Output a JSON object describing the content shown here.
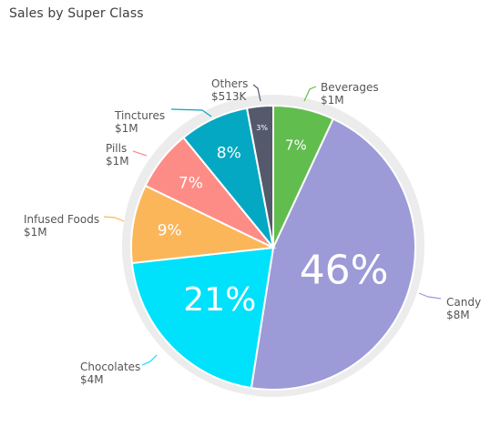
{
  "chart_data": {
    "type": "pie",
    "title": "Sales by Super Class",
    "legend": "data-labels-outside",
    "slices": [
      {
        "name": "Beverages",
        "value_label": "$1M",
        "percent_label": "7%",
        "percent": 7,
        "color": "#62bd4f"
      },
      {
        "name": "Candy",
        "value_label": "$8M",
        "percent_label": "46%",
        "percent": 46,
        "color": "#9d9ad8"
      },
      {
        "name": "Chocolates",
        "value_label": "$4M",
        "percent_label": "21%",
        "percent": 21,
        "color": "#00e1fc"
      },
      {
        "name": "Infused Foods",
        "value_label": "$1M",
        "percent_label": "9%",
        "percent": 9,
        "color": "#fbb65a"
      },
      {
        "name": "Pills",
        "value_label": "$1M",
        "percent_label": "7%",
        "percent": 7,
        "color": "#fd8c86"
      },
      {
        "name": "Tinctures",
        "value_label": "$1M",
        "percent_label": "8%",
        "percent": 8,
        "color": "#04a8c2"
      },
      {
        "name": "Others",
        "value_label": "$513K",
        "percent_label": "3%",
        "percent": 3,
        "color": "#545a6c"
      }
    ]
  }
}
